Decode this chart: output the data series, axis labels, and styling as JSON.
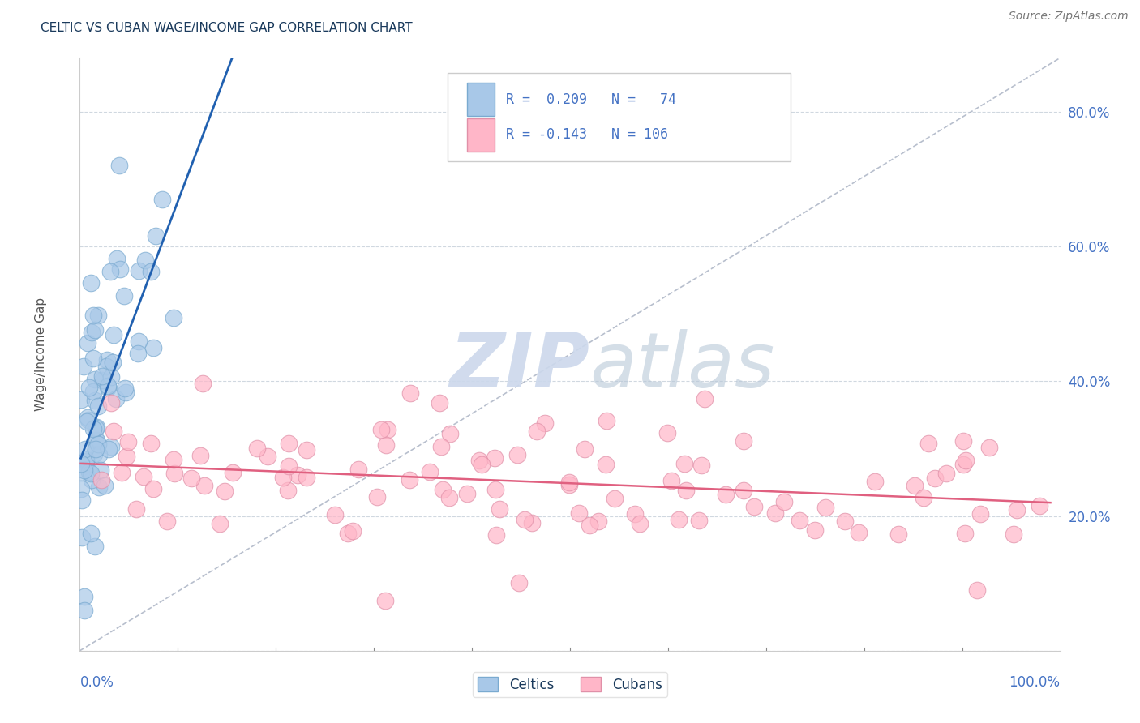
{
  "title": "CELTIC VS CUBAN WAGE/INCOME GAP CORRELATION CHART",
  "source": "Source: ZipAtlas.com",
  "ylabel": "Wage/Income Gap",
  "celtic_color": "#a8c8e8",
  "cuban_color": "#ffb6c8",
  "celtic_line_color": "#2060b0",
  "cuban_line_color": "#e06080",
  "watermark_color": "#ccd8ec",
  "title_color": "#1a3a5c",
  "axis_label_color": "#4472c4",
  "legend_text_color": "#4472c4",
  "background_color": "#ffffff",
  "celtic_R": 0.209,
  "celtic_N": 74,
  "cuban_R": -0.143,
  "cuban_N": 106
}
